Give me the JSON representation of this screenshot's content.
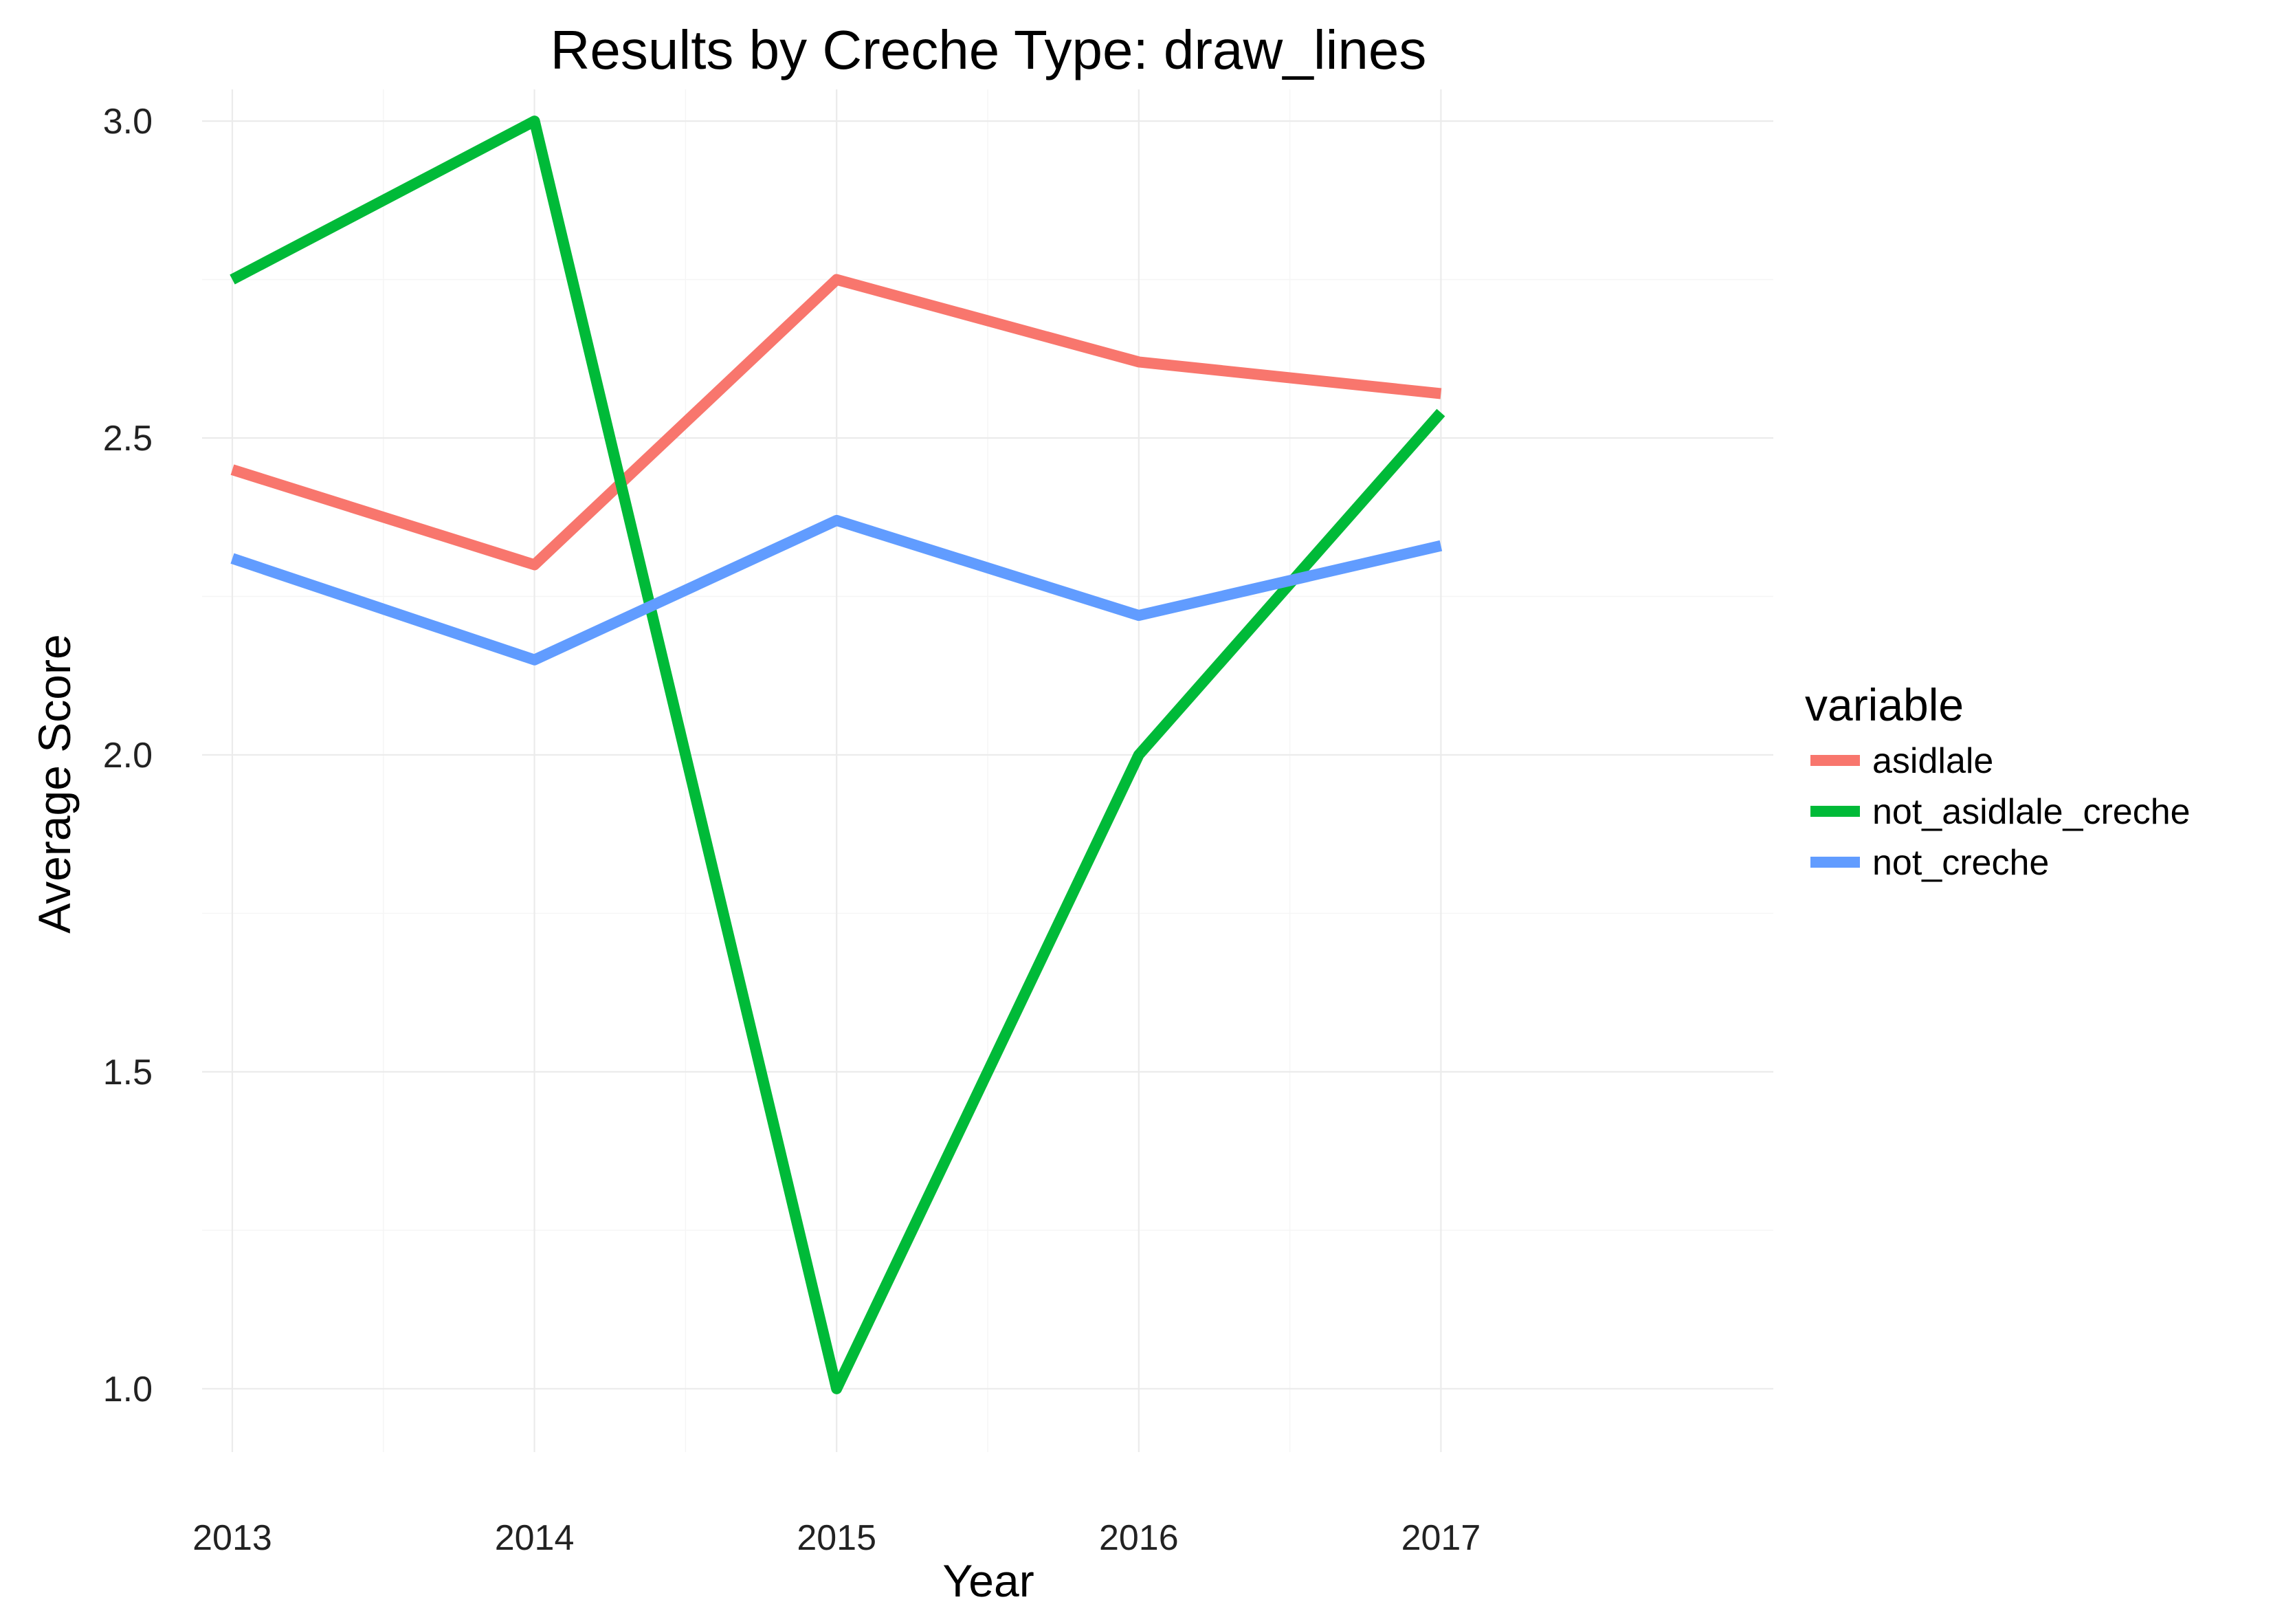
{
  "chart_data": {
    "type": "line",
    "title": "Results by Creche Type: draw_lines",
    "xlabel": "Year",
    "ylabel": "Average Score",
    "x": [
      2013,
      2014,
      2015,
      2016,
      2017
    ],
    "xlim": [
      2012.9,
      2018.1
    ],
    "ylim": [
      0.9,
      3.05
    ],
    "y_ticks": [
      1.0,
      1.5,
      2.0,
      2.5,
      3.0
    ],
    "y_tick_labels": [
      "1.0",
      "1.5",
      "2.0",
      "2.5",
      "3.0"
    ],
    "x_tick_labels": [
      "2013",
      "2014",
      "2015",
      "2016",
      "2017"
    ],
    "grid": true,
    "legend": {
      "title": "variable",
      "position": "right"
    },
    "series": [
      {
        "name": "asidlale",
        "color": "#f8766d",
        "values": [
          2.45,
          2.3,
          2.75,
          2.62,
          2.57
        ]
      },
      {
        "name": "not_asidlale_creche",
        "color": "#00ba38",
        "values": [
          2.75,
          3.0,
          1.0,
          2.0,
          2.54
        ]
      },
      {
        "name": "not_creche",
        "color": "#619cff",
        "values": [
          2.31,
          2.15,
          2.37,
          2.22,
          2.33
        ]
      }
    ]
  }
}
